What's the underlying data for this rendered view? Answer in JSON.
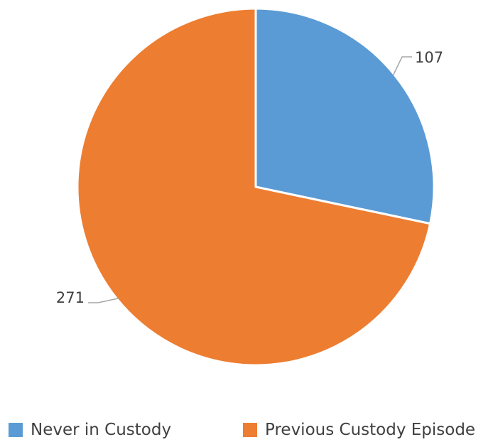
{
  "chart_data": {
    "type": "pie",
    "title": "",
    "categories": [
      "Never in Custody",
      "Previous Custody Episode"
    ],
    "values": [
      107,
      271
    ],
    "colors": [
      "#5B9BD5",
      "#ED7D31"
    ],
    "data_labels": [
      "107",
      "271"
    ],
    "start_angle_deg": 0,
    "direction": "clockwise",
    "legend": {
      "position": "bottom",
      "entries": [
        "Never in Custody",
        "Previous Custody Episode"
      ]
    }
  }
}
